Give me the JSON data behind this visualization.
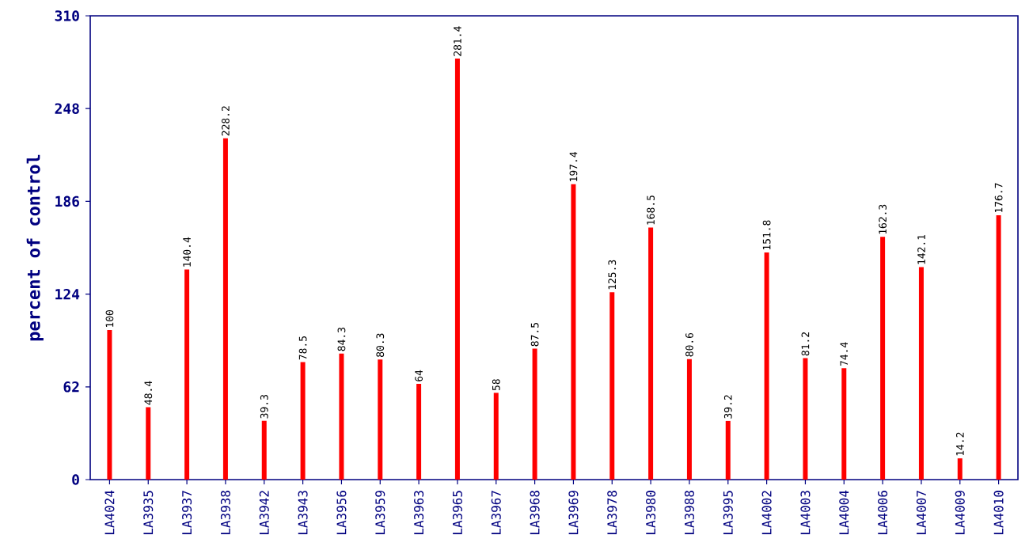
{
  "chart_data": {
    "type": "bar",
    "ylabel": "percent of control",
    "categories": [
      "LA4024",
      "LA3935",
      "LA3937",
      "LA3938",
      "LA3942",
      "LA3943",
      "LA3956",
      "LA3959",
      "LA3963",
      "LA3965",
      "LA3967",
      "LA3968",
      "LA3969",
      "LA3978",
      "LA3980",
      "LA3988",
      "LA3995",
      "LA4002",
      "LA4003",
      "LA4004",
      "LA4006",
      "LA4007",
      "LA4009",
      "LA4010"
    ],
    "values": [
      100,
      48.4,
      140.4,
      228.2,
      39.3,
      78.5,
      84.3,
      80.3,
      64,
      281.4,
      58,
      87.5,
      197.4,
      125.3,
      168.5,
      80.6,
      39.2,
      151.8,
      81.2,
      74.4,
      162.3,
      142.1,
      14.2,
      176.7
    ],
    "color": "#ff0000",
    "ylim": [
      0,
      310
    ],
    "yticks": [
      0,
      62,
      124,
      186,
      248,
      310
    ],
    "data_labels": true,
    "grid": false
  }
}
